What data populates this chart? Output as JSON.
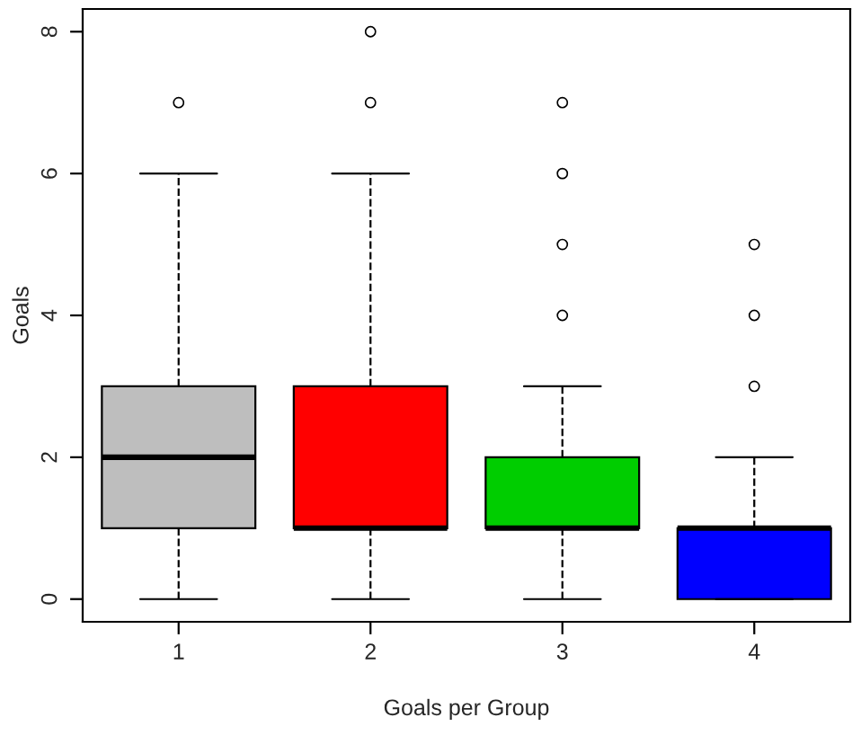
{
  "chart_data": {
    "type": "box",
    "xlabel": "Goals per Group",
    "ylabel": "Goals",
    "categories": [
      "1",
      "2",
      "3",
      "4"
    ],
    "colors": [
      "#bebebe",
      "#ff0000",
      "#00cd00",
      "#0000ff"
    ],
    "boxes": [
      {
        "low": 0,
        "q1": 1,
        "median": 2,
        "q3": 3,
        "high": 6,
        "outliers": [
          7
        ]
      },
      {
        "low": 0,
        "q1": 1,
        "median": 1,
        "q3": 3,
        "high": 6,
        "outliers": [
          7,
          8
        ]
      },
      {
        "low": 0,
        "q1": 1,
        "median": 1,
        "q3": 2,
        "high": 3,
        "outliers": [
          4,
          5,
          6,
          7
        ]
      },
      {
        "low": 0,
        "q1": 0,
        "median": 1,
        "q3": 1,
        "high": 2,
        "outliers": [
          3,
          4,
          5
        ]
      }
    ],
    "ylim": [
      -0.32,
      8.32
    ],
    "yticks": [
      0,
      2,
      4,
      6,
      8
    ],
    "grid": false
  }
}
